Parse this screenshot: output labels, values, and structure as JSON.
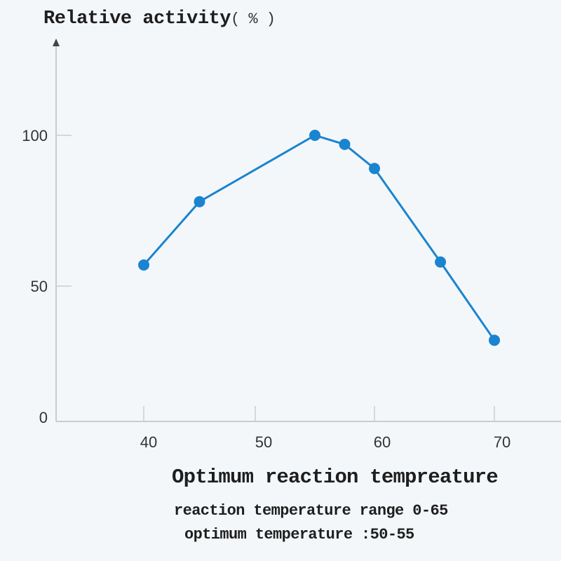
{
  "chart_data": {
    "type": "line",
    "title": "",
    "ylabel": "Relative activity",
    "ylabel_unit": "( % )",
    "xlabel": "Optimum reaction tempreature",
    "annotations": [
      "reaction temperature range 0-65",
      "optimum temperature :50-55"
    ],
    "x_ticks": [
      40,
      50,
      60,
      70
    ],
    "y_ticks": [
      0,
      50,
      100
    ],
    "xlim": [
      32,
      78
    ],
    "ylim": [
      0,
      125
    ],
    "grid": false,
    "series": [
      {
        "name": "Relative activity",
        "color": "#1a84d0",
        "x": [
          40,
          45,
          55,
          57.5,
          60,
          65.5,
          70
        ],
        "y": [
          57,
          78,
          100,
          97,
          89,
          58,
          30
        ]
      }
    ]
  },
  "labels": {
    "ylabel": "Relative activity",
    "ylabel_unit": "( % )",
    "xlabel": "Optimum reaction tempreature",
    "note_range": "reaction temperature range 0-65",
    "note_optimum": "optimum temperature :50-55",
    "y_tick_0": "0",
    "y_tick_50": "50",
    "y_tick_100": "100",
    "x_tick_40": "40",
    "x_tick_50": "50",
    "x_tick_60": "60",
    "x_tick_70": "70"
  }
}
